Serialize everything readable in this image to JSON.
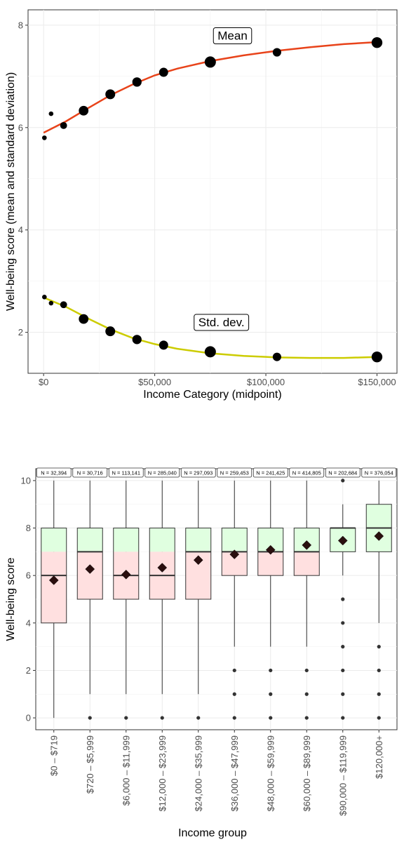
{
  "chart_data": [
    {
      "type": "scatter",
      "xlabel": "Income Category (midpoint)",
      "ylabel": "Well-being score (mean and standard deviation)",
      "xlim": [
        -7000,
        159000
      ],
      "ylim": [
        1.2,
        8.3
      ],
      "x_ticks": [
        0,
        50000,
        100000,
        150000
      ],
      "x_tick_labels": [
        "$0",
        "$50,000",
        "$100,000",
        "$150,000"
      ],
      "y_ticks": [
        2,
        4,
        6,
        8
      ],
      "y_tick_labels": [
        "2",
        "4",
        "6",
        "8"
      ],
      "grid": true,
      "annotations": [
        {
          "text": "Mean",
          "x": 85000,
          "y": 7.8
        },
        {
          "text": "Std. dev.",
          "x": 80000,
          "y": 2.2
        }
      ],
      "series": [
        {
          "role": "mean",
          "fit_color": "#e8431a",
          "x": [
            360,
            3360,
            9000,
            18000,
            30000,
            42000,
            54000,
            75000,
            105000,
            150000
          ],
          "y": [
            5.8,
            6.27,
            6.04,
            6.33,
            6.65,
            6.89,
            7.08,
            7.28,
            7.47,
            7.66
          ],
          "n": [
            32394,
            30716,
            113141,
            285040,
            297093,
            259453,
            241425,
            414805,
            202684,
            376054
          ],
          "fit": [
            [
              0,
              5.9
            ],
            [
              10000,
              6.12
            ],
            [
              20000,
              6.38
            ],
            [
              30000,
              6.63
            ],
            [
              40000,
              6.84
            ],
            [
              50000,
              7.02
            ],
            [
              60000,
              7.15
            ],
            [
              75000,
              7.3
            ],
            [
              90000,
              7.41
            ],
            [
              105000,
              7.5
            ],
            [
              120000,
              7.57
            ],
            [
              135000,
              7.63
            ],
            [
              150000,
              7.67
            ]
          ]
        },
        {
          "role": "std",
          "fit_color": "#cccc00",
          "x": [
            360,
            3360,
            9000,
            18000,
            30000,
            42000,
            54000,
            75000,
            105000,
            150000
          ],
          "y": [
            2.69,
            2.57,
            2.54,
            2.26,
            2.02,
            1.86,
            1.75,
            1.62,
            1.52,
            1.52
          ],
          "n": [
            32394,
            30716,
            113141,
            285040,
            297093,
            259453,
            241425,
            414805,
            202684,
            376054
          ],
          "fit": [
            [
              0,
              2.68
            ],
            [
              10000,
              2.5
            ],
            [
              20000,
              2.27
            ],
            [
              30000,
              2.06
            ],
            [
              40000,
              1.89
            ],
            [
              50000,
              1.77
            ],
            [
              60000,
              1.68
            ],
            [
              75000,
              1.59
            ],
            [
              90000,
              1.54
            ],
            [
              105000,
              1.51
            ],
            [
              120000,
              1.5
            ],
            [
              135000,
              1.5
            ],
            [
              150000,
              1.52
            ]
          ]
        }
      ]
    },
    {
      "type": "box",
      "xlabel": "Income group",
      "ylabel": "Well-being score",
      "ylim": [
        -0.5,
        10.5
      ],
      "y_ticks": [
        0,
        2,
        4,
        6,
        8,
        10
      ],
      "y_tick_labels": [
        "0",
        "2",
        "4",
        "6",
        "8",
        "10"
      ],
      "grid": true,
      "shading": {
        "above_7": "#e0ffe0",
        "below_7": "#ffe0e0",
        "threshold": 7
      },
      "categories": [
        "$0 – $719",
        "$720 – $5,999",
        "$6,000 – $11,999",
        "$12,000 – $23,999",
        "$24,000 – $35,999",
        "$36,000 – $47,999",
        "$48,000 – $59,999",
        "$60,000 – $89,999",
        "$90,000 – $119,999",
        "$120,000+"
      ],
      "n_labels": [
        "N = 32,394",
        "N = 30,716",
        "N = 113,141",
        "N = 285,040",
        "N = 297,093",
        "N = 259,453",
        "N = 241,425",
        "N = 414,805",
        "N = 202,684",
        "N = 376,054"
      ],
      "boxes": [
        {
          "q1": 4,
          "median": 6,
          "q3": 8,
          "lo": 0,
          "hi": 10,
          "mean": 5.8,
          "outliers": []
        },
        {
          "q1": 5,
          "median": 7,
          "q3": 8,
          "lo": 1,
          "hi": 10,
          "mean": 6.27,
          "outliers": [
            0
          ]
        },
        {
          "q1": 5,
          "median": 6,
          "q3": 8,
          "lo": 1,
          "hi": 10,
          "mean": 6.04,
          "outliers": [
            0
          ]
        },
        {
          "q1": 5,
          "median": 6,
          "q3": 8,
          "lo": 1,
          "hi": 10,
          "mean": 6.33,
          "outliers": [
            0
          ]
        },
        {
          "q1": 5,
          "median": 7,
          "q3": 8,
          "lo": 1,
          "hi": 10,
          "mean": 6.65,
          "outliers": [
            0
          ]
        },
        {
          "q1": 6,
          "median": 7,
          "q3": 8,
          "lo": 3,
          "hi": 10,
          "mean": 6.89,
          "outliers": [
            0,
            1,
            2
          ]
        },
        {
          "q1": 6,
          "median": 7,
          "q3": 8,
          "lo": 3,
          "hi": 10,
          "mean": 7.08,
          "outliers": [
            0,
            1,
            2
          ]
        },
        {
          "q1": 6,
          "median": 7,
          "q3": 8,
          "lo": 3,
          "hi": 10,
          "mean": 7.28,
          "outliers": [
            0,
            1,
            2
          ]
        },
        {
          "q1": 7,
          "median": 8,
          "q3": 8,
          "lo": 6,
          "hi": 9,
          "mean": 7.47,
          "outliers": [
            0,
            1,
            2,
            3,
            4,
            5,
            10
          ]
        },
        {
          "q1": 7,
          "median": 8,
          "q3": 9,
          "lo": 4,
          "hi": 10,
          "mean": 7.66,
          "outliers": [
            0,
            1,
            2,
            3
          ]
        }
      ]
    }
  ]
}
